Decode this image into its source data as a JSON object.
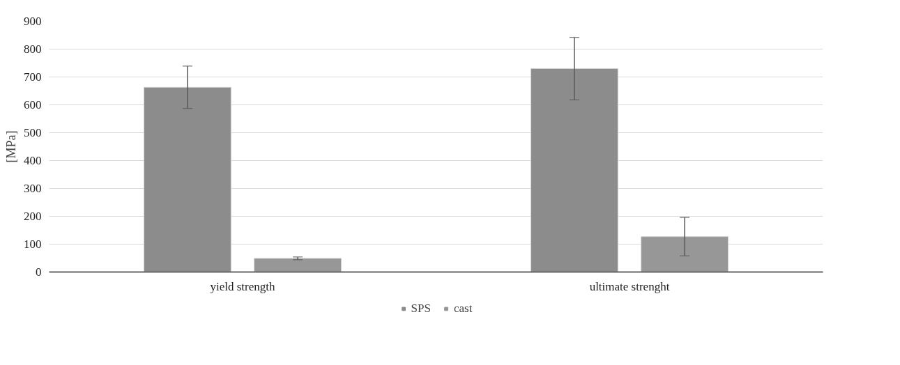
{
  "chart_data": {
    "type": "bar",
    "ylabel": "[MPa]",
    "categories": [
      "yield strength",
      "ultimate strenght"
    ],
    "series": [
      {
        "name": "SPS",
        "color": "#8c8c8c",
        "values": [
          663,
          730
        ],
        "errors": [
          76,
          112
        ]
      },
      {
        "name": "cast",
        "color": "#979797",
        "values": [
          49,
          127
        ],
        "errors": [
          5,
          69
        ]
      }
    ],
    "ylim": [
      0,
      900
    ],
    "yticks": [
      0,
      100,
      200,
      300,
      400,
      500,
      600,
      700,
      800,
      900
    ],
    "grid": "y",
    "legend": "bottom"
  }
}
